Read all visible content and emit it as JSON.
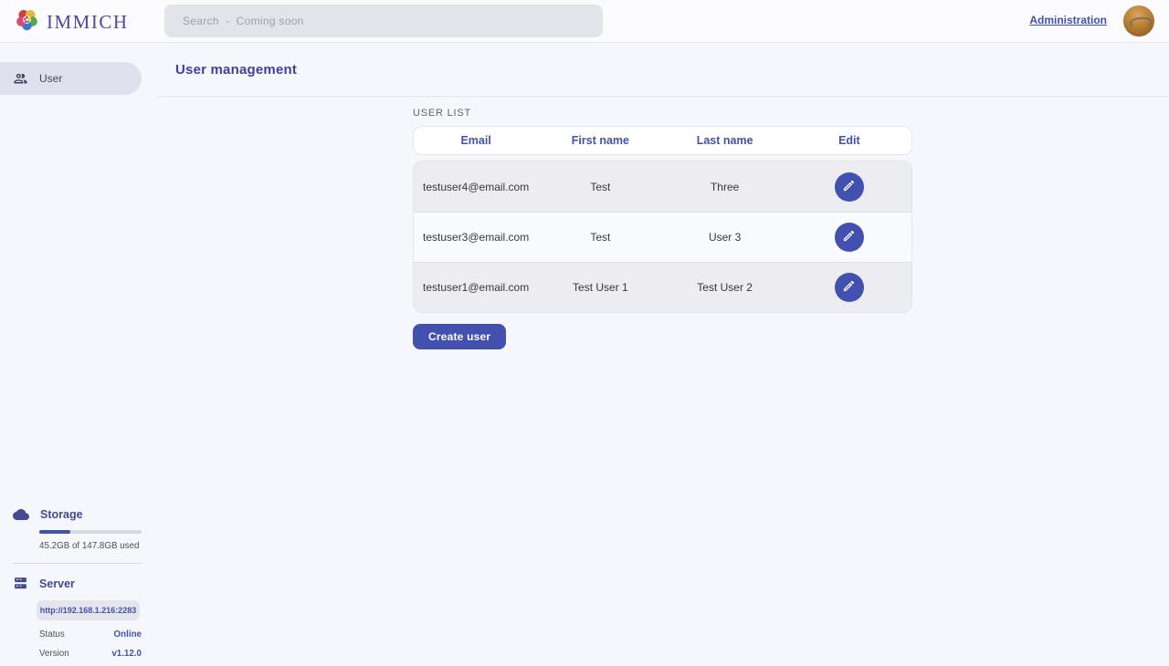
{
  "colors": {
    "primary": "#4250af",
    "page_bg": "#f6f7fc",
    "header_bg": "#fbfbfe",
    "row_odd": "#ededf1",
    "row_even": "#f9fafd"
  },
  "header": {
    "logo_text": "IMMICH",
    "search_placeholder": "Search  -  Coming soon",
    "admin_link": "Administration"
  },
  "sidebar": {
    "items": [
      {
        "label": "User"
      }
    ],
    "storage": {
      "title": "Storage",
      "usage_text": "45.2GB of 147.8GB used",
      "percent_used": 30.6
    },
    "server": {
      "title": "Server",
      "url": "http://192.168.1.216:2283",
      "status_label": "Status",
      "status_value": "Online",
      "version_label": "Version",
      "version_value": "v1.12.0"
    }
  },
  "page": {
    "title": "User management",
    "section_label": "USER LIST"
  },
  "table": {
    "columns": [
      "Email",
      "First name",
      "Last name",
      "Edit"
    ],
    "rows": [
      {
        "email": "testuser4@email.com",
        "first_name": "Test",
        "last_name": "Three"
      },
      {
        "email": "testuser3@email.com",
        "first_name": "Test",
        "last_name": "User 3"
      },
      {
        "email": "testuser1@email.com",
        "first_name": "Test User 1",
        "last_name": "Test User 2"
      }
    ]
  },
  "actions": {
    "create_user": "Create user"
  }
}
